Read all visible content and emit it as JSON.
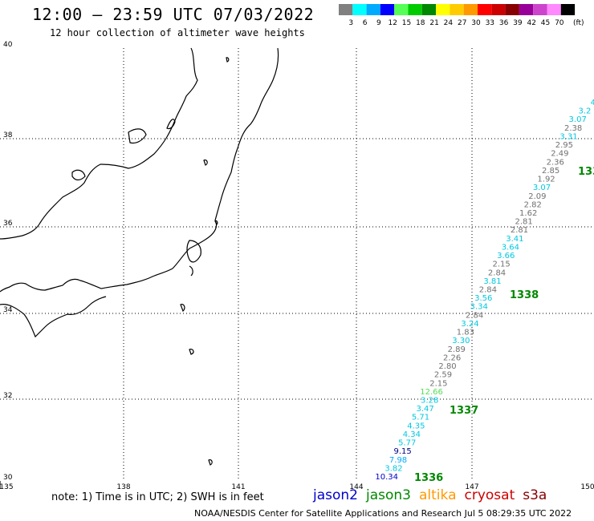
{
  "header": {
    "title": "12:00 – 23:59 UTC 07/03/2022",
    "subtitle": "12 hour collection of altimeter wave heights"
  },
  "legend": {
    "colors": [
      "#808080",
      "#00ffff",
      "#00aaff",
      "#0000ff",
      "#55ff55",
      "#00cc00",
      "#008800",
      "#ffff00",
      "#ffcc00",
      "#ff9900",
      "#ff0000",
      "#cc0000",
      "#880000",
      "#990099",
      "#cc44cc",
      "#ff88ff",
      "#000000"
    ],
    "labels": [
      "3",
      "6",
      "9",
      "12",
      "15",
      "18",
      "21",
      "24",
      "27",
      "30",
      "33",
      "36",
      "39",
      "42",
      "45",
      "70"
    ],
    "unit": "(ft)"
  },
  "axes": {
    "lat_labels": [
      "40",
      "38",
      "36",
      "34",
      "32",
      "30"
    ],
    "lon_labels": [
      "135",
      "138",
      "141",
      "144",
      "147",
      "150"
    ]
  },
  "observations": [
    {
      "value": "4",
      "color": "#00c8e0"
    },
    {
      "value": "3.2",
      "color": "#00c8e0"
    },
    {
      "value": "3.07",
      "color": "#00c8e0"
    },
    {
      "value": "2.38",
      "color": "#707070"
    },
    {
      "value": "3.31",
      "color": "#00c8e0"
    },
    {
      "value": "2.95",
      "color": "#707070"
    },
    {
      "value": "2.49",
      "color": "#707070"
    },
    {
      "value": "2.36",
      "color": "#707070"
    },
    {
      "value": "2.85",
      "color": "#707070"
    },
    {
      "value": "1.92",
      "color": "#707070"
    },
    {
      "value": "3.07",
      "color": "#00c8e0"
    },
    {
      "value": "2.09",
      "color": "#707070"
    },
    {
      "value": "2.82",
      "color": "#707070"
    },
    {
      "value": "1.62",
      "color": "#707070"
    },
    {
      "value": "2.81",
      "color": "#707070"
    },
    {
      "value": "2.81",
      "color": "#707070"
    },
    {
      "value": "3.41",
      "color": "#00c8e0"
    },
    {
      "value": "3.64",
      "color": "#00c8e0"
    },
    {
      "value": "3.66",
      "color": "#00c8e0"
    },
    {
      "value": "2.15",
      "color": "#707070"
    },
    {
      "value": "2.84",
      "color": "#707070"
    },
    {
      "value": "3.81",
      "color": "#00c8e0"
    },
    {
      "value": "2.84",
      "color": "#707070"
    },
    {
      "value": "3.56",
      "color": "#00c8e0"
    },
    {
      "value": "3.34",
      "color": "#00c8e0"
    },
    {
      "value": "2.84",
      "color": "#707070"
    },
    {
      "value": "3.24",
      "color": "#00c8e0"
    },
    {
      "value": "1.83",
      "color": "#707070"
    },
    {
      "value": "3.30",
      "color": "#00c8e0"
    },
    {
      "value": "2.89",
      "color": "#707070"
    },
    {
      "value": "2.26",
      "color": "#707070"
    },
    {
      "value": "2.80",
      "color": "#707070"
    },
    {
      "value": "2.59",
      "color": "#707070"
    },
    {
      "value": "2.15",
      "color": "#707070"
    },
    {
      "value": "12.66",
      "color": "#55dd55"
    },
    {
      "value": "3.28",
      "color": "#00c8e0"
    },
    {
      "value": "3.47",
      "color": "#00c8e0"
    },
    {
      "value": "5.71",
      "color": "#00c8e0"
    },
    {
      "value": "4.35",
      "color": "#00c8e0"
    },
    {
      "value": "4.34",
      "color": "#00c8e0"
    },
    {
      "value": "5.77",
      "color": "#00c8e0"
    },
    {
      "value": "9.15",
      "color": "#000080"
    },
    {
      "value": "7.98",
      "color": "#00aaff"
    },
    {
      "value": "3.82",
      "color": "#00c8e0"
    },
    {
      "value": "10.34",
      "color": "#0000cc"
    }
  ],
  "pass_labels": [
    {
      "text": "133",
      "color": "#008800"
    },
    {
      "text": "1338",
      "color": "#008800"
    },
    {
      "text": "1337",
      "color": "#008800"
    },
    {
      "text": "1336",
      "color": "#008800"
    }
  ],
  "note": "note: 1) Time is in UTC; 2) SWH is in feet",
  "missions": [
    {
      "name": "jason2",
      "color": "#0000cc"
    },
    {
      "name": "jason3",
      "color": "#008800"
    },
    {
      "name": "altika",
      "color": "#ff9900"
    },
    {
      "name": "cryosat",
      "color": "#cc0000"
    },
    {
      "name": "s3a",
      "color": "#880000"
    }
  ],
  "footer": "NOAA/NESDIS Center for Satellite Applications and Research    Jul  5 08:29:35 UTC 2022"
}
